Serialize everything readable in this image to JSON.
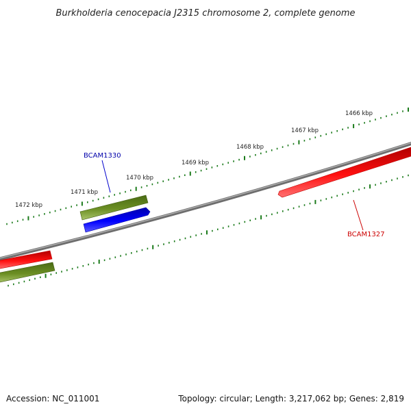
{
  "title": "Burkholderia cenocepacia J2315 chromosome 2, complete genome",
  "footer": {
    "accession": "Accession: NC_011001",
    "summary": "Topology: circular; Length: 3,217,062 bp; Genes: 2,819"
  },
  "scale_labels": [
    "1466 kbp",
    "1467 kbp",
    "1468 kbp",
    "1469 kbp",
    "1470 kbp",
    "1471 kbp",
    "1472 kbp"
  ],
  "gene_labels": {
    "upper": {
      "text": "BCAM1330",
      "color": "#0000aa"
    },
    "lower": {
      "text": "BCAM1327",
      "color": "#cc0000"
    }
  },
  "colors": {
    "backbone": "#808080",
    "tick": "#1a7a1a",
    "red_feature": "#ee0000",
    "green_feature": "#6b8e23",
    "blue_feature": "#0000ee"
  }
}
